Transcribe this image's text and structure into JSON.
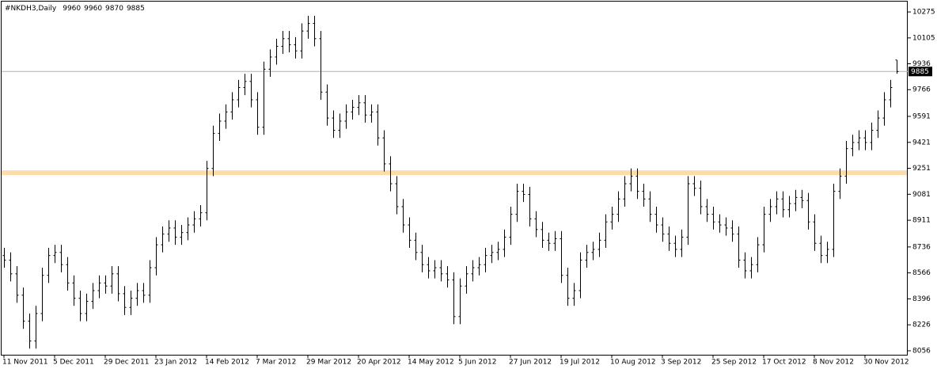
{
  "chart_data": {
    "type": "ohlc",
    "symbol": "#NKDH3,Daily",
    "header_values": [
      9960,
      9960,
      9870,
      9885
    ],
    "color": "#000000",
    "open": [
      8680,
      8650,
      8560,
      8420,
      8250,
      8120,
      8300,
      8550,
      8680,
      8700,
      8620,
      8500,
      8400,
      8300,
      8380,
      8450,
      8500,
      8480,
      8560,
      8430,
      8340,
      8400,
      8450,
      8420,
      8600,
      8750,
      8820,
      8860,
      8800,
      8830,
      8880,
      8920,
      8960,
      9250,
      9480,
      9560,
      9620,
      9700,
      9780,
      9820,
      9700,
      9520,
      9900,
      9980,
      10050,
      10100,
      10060,
      10020,
      10150,
      10200,
      10100,
      9750,
      9580,
      9500,
      9560,
      9620,
      9650,
      9680,
      9600,
      9620,
      9450,
      9280,
      9150,
      9000,
      8880,
      8780,
      8700,
      8620,
      8580,
      8600,
      8560,
      8520,
      8280,
      8480,
      8560,
      8600,
      8620,
      8680,
      8700,
      8720,
      8800,
      8950,
      9100,
      9080,
      8920,
      8850,
      8780,
      8760,
      8790,
      8550,
      8400,
      8450,
      8650,
      8700,
      8720,
      8780,
      8900,
      8950,
      9050,
      9150,
      9200,
      9100,
      9050,
      8950,
      8880,
      8820,
      8760,
      8720,
      8800,
      9150,
      9120,
      9000,
      8950,
      8900,
      8880,
      8860,
      8820,
      8650,
      8580,
      8620,
      8750,
      8950,
      9000,
      9050,
      8980,
      9020,
      9060,
      9040,
      8900,
      8760,
      8680,
      8720,
      9100,
      9200,
      9380,
      9420,
      9450,
      9420,
      9500,
      9580,
      9700,
      9960
    ],
    "high": [
      8730,
      8700,
      8610,
      8470,
      8300,
      8350,
      8600,
      8730,
      8750,
      8750,
      8670,
      8550,
      8450,
      8430,
      8500,
      8550,
      8550,
      8610,
      8610,
      8480,
      8450,
      8500,
      8500,
      8650,
      8800,
      8870,
      8910,
      8910,
      8880,
      8930,
      8970,
      9010,
      9300,
      9530,
      9610,
      9670,
      9750,
      9830,
      9870,
      9870,
      9750,
      9950,
      10030,
      10100,
      10150,
      10150,
      10110,
      10200,
      10250,
      10250,
      10150,
      9800,
      9630,
      9610,
      9670,
      9700,
      9730,
      9730,
      9670,
      9670,
      9500,
      9330,
      9200,
      9050,
      8930,
      8830,
      8750,
      8670,
      8650,
      8650,
      8610,
      8570,
      8530,
      8610,
      8650,
      8670,
      8730,
      8750,
      8770,
      8850,
      9000,
      9150,
      9150,
      9130,
      8970,
      8900,
      8830,
      8840,
      8840,
      8600,
      8500,
      8700,
      8750,
      8770,
      8830,
      8950,
      9000,
      9100,
      9200,
      9250,
      9250,
      9150,
      9100,
      9000,
      8930,
      8870,
      8810,
      8850,
      9200,
      9200,
      9170,
      9050,
      9000,
      8950,
      8930,
      8910,
      8870,
      8700,
      8670,
      8800,
      9000,
      9050,
      9100,
      9100,
      9070,
      9110,
      9110,
      9090,
      8950,
      8810,
      8770,
      9150,
      9250,
      9430,
      9470,
      9500,
      9500,
      9550,
      9630,
      9750,
      9830,
      9960
    ],
    "low": [
      8600,
      8510,
      8370,
      8200,
      8070,
      8070,
      8250,
      8500,
      8630,
      8570,
      8450,
      8350,
      8250,
      8250,
      8330,
      8400,
      8430,
      8430,
      8380,
      8290,
      8290,
      8350,
      8370,
      8370,
      8550,
      8700,
      8770,
      8750,
      8750,
      8780,
      8830,
      8870,
      8910,
      9200,
      9430,
      9510,
      9570,
      9650,
      9730,
      9650,
      9470,
      9470,
      9850,
      9930,
      10000,
      10010,
      9970,
      9970,
      10100,
      10050,
      9700,
      9530,
      9450,
      9450,
      9510,
      9570,
      9600,
      9550,
      9550,
      9400,
      9230,
      9100,
      8950,
      8830,
      8730,
      8650,
      8570,
      8530,
      8530,
      8510,
      8470,
      8230,
      8230,
      8430,
      8510,
      8550,
      8570,
      8630,
      8650,
      8670,
      8750,
      8900,
      9030,
      8870,
      8800,
      8730,
      8710,
      8710,
      8500,
      8350,
      8350,
      8400,
      8600,
      8650,
      8670,
      8730,
      8850,
      8900,
      9000,
      9100,
      9050,
      9000,
      8900,
      8830,
      8770,
      8710,
      8670,
      8670,
      8750,
      9070,
      8950,
      8900,
      8850,
      8830,
      8810,
      8770,
      8600,
      8530,
      8530,
      8570,
      8700,
      8900,
      8950,
      8930,
      8930,
      8970,
      8990,
      8850,
      8710,
      8630,
      8630,
      8670,
      9050,
      9150,
      9330,
      9370,
      9370,
      9370,
      9450,
      9530,
      9650,
      9870
    ],
    "close": [
      8650,
      8560,
      8420,
      8250,
      8120,
      8300,
      8550,
      8680,
      8700,
      8620,
      8500,
      8400,
      8300,
      8380,
      8450,
      8500,
      8480,
      8560,
      8430,
      8340,
      8400,
      8450,
      8420,
      8600,
      8750,
      8820,
      8860,
      8800,
      8830,
      8880,
      8920,
      8960,
      9250,
      9480,
      9560,
      9620,
      9700,
      9780,
      9820,
      9700,
      9520,
      9900,
      9980,
      10050,
      10100,
      10060,
      10020,
      10150,
      10200,
      10100,
      9750,
      9580,
      9500,
      9560,
      9620,
      9650,
      9680,
      9600,
      9620,
      9450,
      9280,
      9150,
      9000,
      8880,
      8780,
      8700,
      8620,
      8580,
      8600,
      8560,
      8520,
      8280,
      8480,
      8560,
      8600,
      8620,
      8680,
      8700,
      8720,
      8800,
      8950,
      9100,
      9080,
      8920,
      8850,
      8780,
      8760,
      8790,
      8550,
      8400,
      8450,
      8650,
      8700,
      8720,
      8780,
      8900,
      8950,
      9050,
      9150,
      9200,
      9100,
      9050,
      8950,
      8880,
      8820,
      8760,
      8720,
      8800,
      9150,
      9120,
      9000,
      8950,
      8900,
      8880,
      8860,
      8820,
      8650,
      8580,
      8620,
      8750,
      8950,
      9000,
      9050,
      8980,
      9020,
      9060,
      9040,
      8900,
      8760,
      8680,
      8720,
      9100,
      9200,
      9380,
      9420,
      9450,
      9420,
      9500,
      9580,
      9700,
      9780,
      9885
    ],
    "current_price": 9885,
    "level_line": 9222,
    "level_color": "#fddcac",
    "xlim": [
      -0.5,
      141.5
    ],
    "xticks": [
      {
        "value": 0,
        "label": "11 Nov 2011"
      },
      {
        "value": 8,
        "label": "5 Dec 2011"
      },
      {
        "value": 16,
        "label": "29 Dec 2011"
      },
      {
        "value": 24,
        "label": "23 Jan 2012"
      },
      {
        "value": 32,
        "label": "14 Feb 2012"
      },
      {
        "value": 40,
        "label": "7 Mar 2012"
      },
      {
        "value": 48,
        "label": "29 Mar 2012"
      },
      {
        "value": 56,
        "label": "20 Apr 2012"
      },
      {
        "value": 64,
        "label": "14 May 2012"
      },
      {
        "value": 72,
        "label": "5 Jun 2012"
      },
      {
        "value": 80,
        "label": "27 Jun 2012"
      },
      {
        "value": 88,
        "label": "19 Jul 2012"
      },
      {
        "value": 96,
        "label": "10 Aug 2012"
      },
      {
        "value": 104,
        "label": "3 Sep 2012"
      },
      {
        "value": 112,
        "label": "25 Sep 2012"
      },
      {
        "value": 120,
        "label": "17 Oct 2012"
      },
      {
        "value": 128,
        "label": "8 Nov 2012"
      },
      {
        "value": 136,
        "label": "30 Nov 2012"
      }
    ],
    "ylim": [
      8030,
      10348
    ],
    "yticks": [
      10275,
      10105,
      9936,
      9766,
      9591,
      9421,
      9251,
      9081,
      8911,
      8736,
      8566,
      8396,
      8226,
      8056
    ]
  }
}
